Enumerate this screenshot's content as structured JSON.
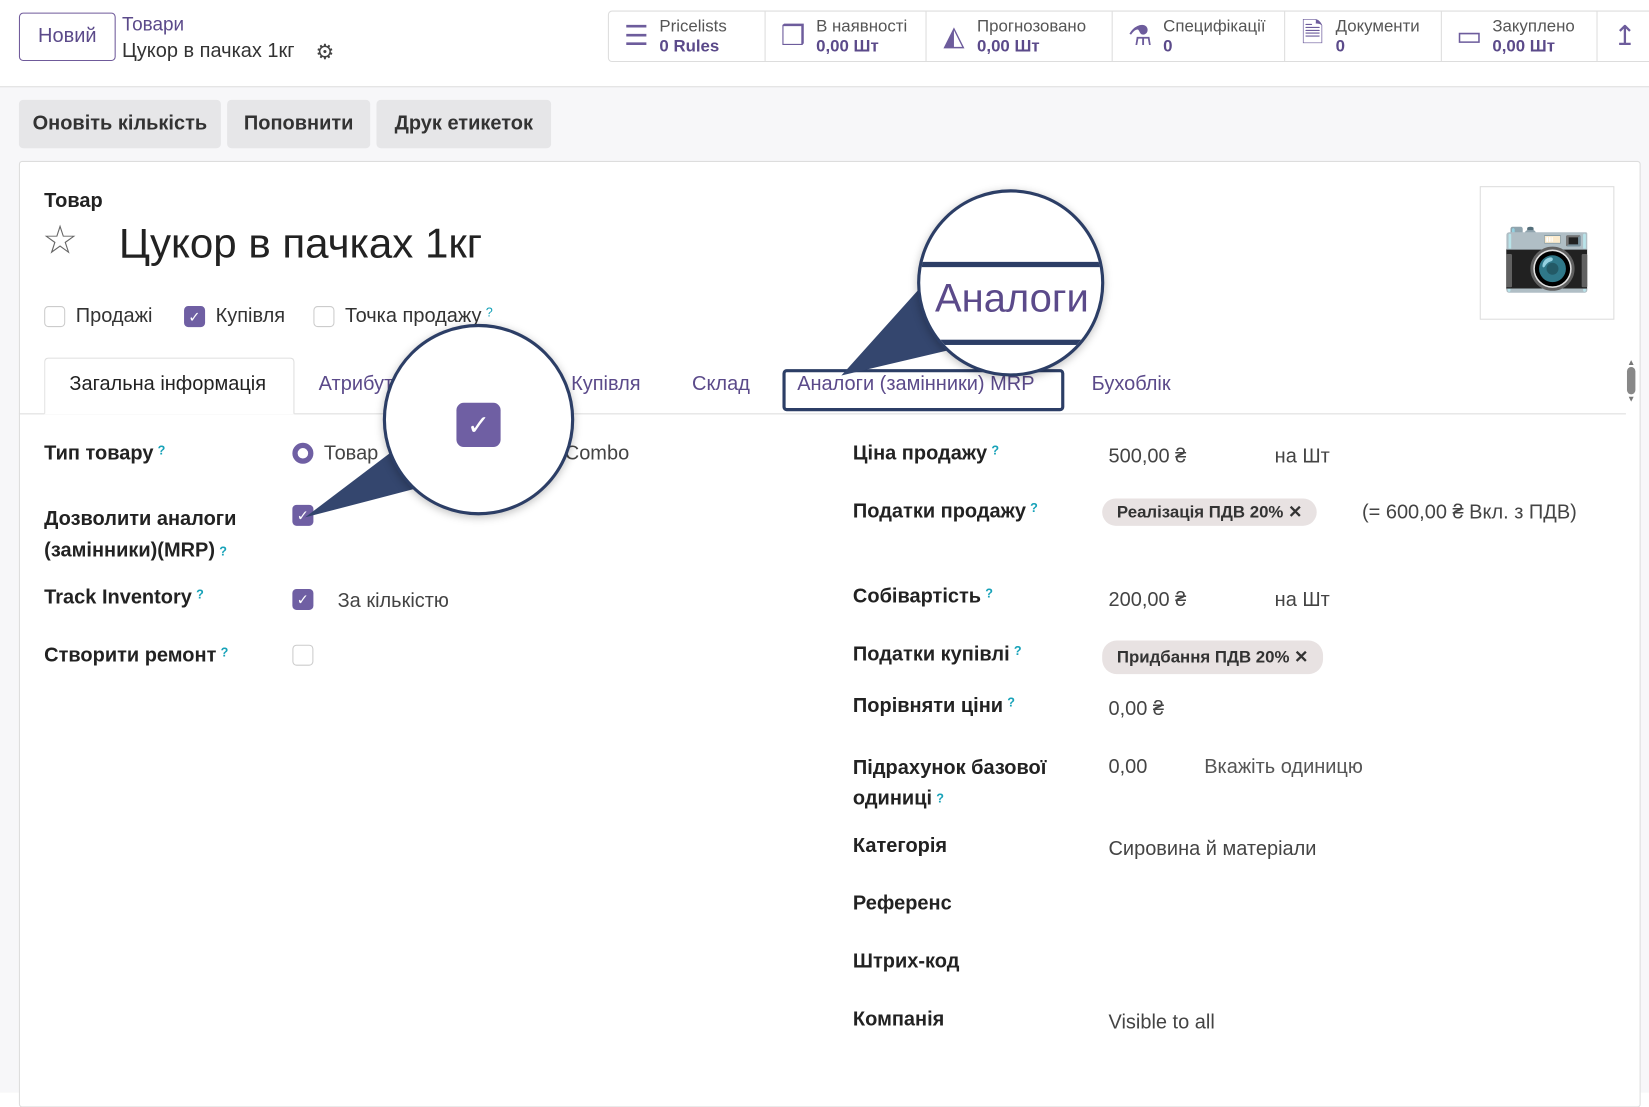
{
  "header": {
    "new_button": "Новий",
    "breadcrumb": "Товари",
    "record_title": "Цукор в пачках 1кг"
  },
  "stat_buttons": [
    {
      "icon": "list-icon",
      "title": "Pricelists",
      "value": "0  Rules"
    },
    {
      "icon": "cubes-icon",
      "title": "В наявності",
      "value": "0,00 Шт"
    },
    {
      "icon": "area-chart-icon",
      "title": "Прогнозовано",
      "value": "0,00 Шт"
    },
    {
      "icon": "flask-icon",
      "title": "Специфікації",
      "value": "0"
    },
    {
      "icon": "document-icon",
      "title": "Документи",
      "value": "0"
    },
    {
      "icon": "credit-card-icon",
      "title": "Закуплено",
      "value": "0,00 Шт"
    },
    {
      "icon": "arrow-up-icon",
      "title": "",
      "value": ""
    }
  ],
  "actions": [
    "Оновіть кількість",
    "Поповнити",
    "Друк етикеток"
  ],
  "form": {
    "kind_label": "Товар",
    "name": "Цукор в пачках 1кг",
    "flags": [
      {
        "label": "Продажі",
        "checked": false
      },
      {
        "label": "Купівля",
        "checked": true
      },
      {
        "label": "Точка продажу",
        "checked": false
      }
    ],
    "tabs": [
      "Загальна інформація",
      "Атрибути",
      "Купівля",
      "Склад",
      "Аналоги (замінники) MRP",
      "Бухоблік"
    ],
    "active_tab": "Загальна інформація",
    "left": {
      "product_type_label": "Тип товару",
      "product_type_options": [
        "Товар",
        "Combo"
      ],
      "product_type_selected": "Товар",
      "allow_analogs_label_1": "Дозволити аналоги",
      "allow_analogs_label_2": "(замінники)(MRP)",
      "allow_analogs": true,
      "track_inventory_label": "Track Inventory",
      "track_inventory": true,
      "track_inventory_mode": "За кількістю",
      "create_repair_label": "Створити ремонт",
      "create_repair": false
    },
    "right": {
      "sale_price_label": "Ціна продажу",
      "sale_price": "500,00 ₴",
      "sale_price_unit": "на  Шт",
      "sale_taxes_label": "Податки продажу",
      "sale_tax": "Реалізація ПДВ 20%",
      "sale_tax_incl": "(= 600,00 ₴ Вкл. з ПДВ)",
      "cost_label": "Собівартість",
      "cost": "200,00 ₴",
      "cost_unit": "на Шт",
      "purchase_taxes_label": "Податки купівлі",
      "purchase_tax": "Придбання ПДВ 20%",
      "compare_label": "Порівняти ціни",
      "compare": "0,00 ₴",
      "base_unit_label_1": "Підрахунок базової",
      "base_unit_label_2": "одиниці",
      "base_unit_count": "0,00",
      "base_unit_placeholder": "Вкажіть одиницю",
      "category_label": "Категорія",
      "category": "Сировина й матеріали",
      "reference_label": "Референс",
      "barcode_label": "Штрих-код",
      "company_label": "Компанія",
      "company": "Visible to all"
    }
  },
  "callouts": {
    "tab_zoom_text": "Аналоги"
  },
  "colors": {
    "accent": "#6f5fa3",
    "callout": "#2c3e66",
    "help": "#17a2b8"
  }
}
